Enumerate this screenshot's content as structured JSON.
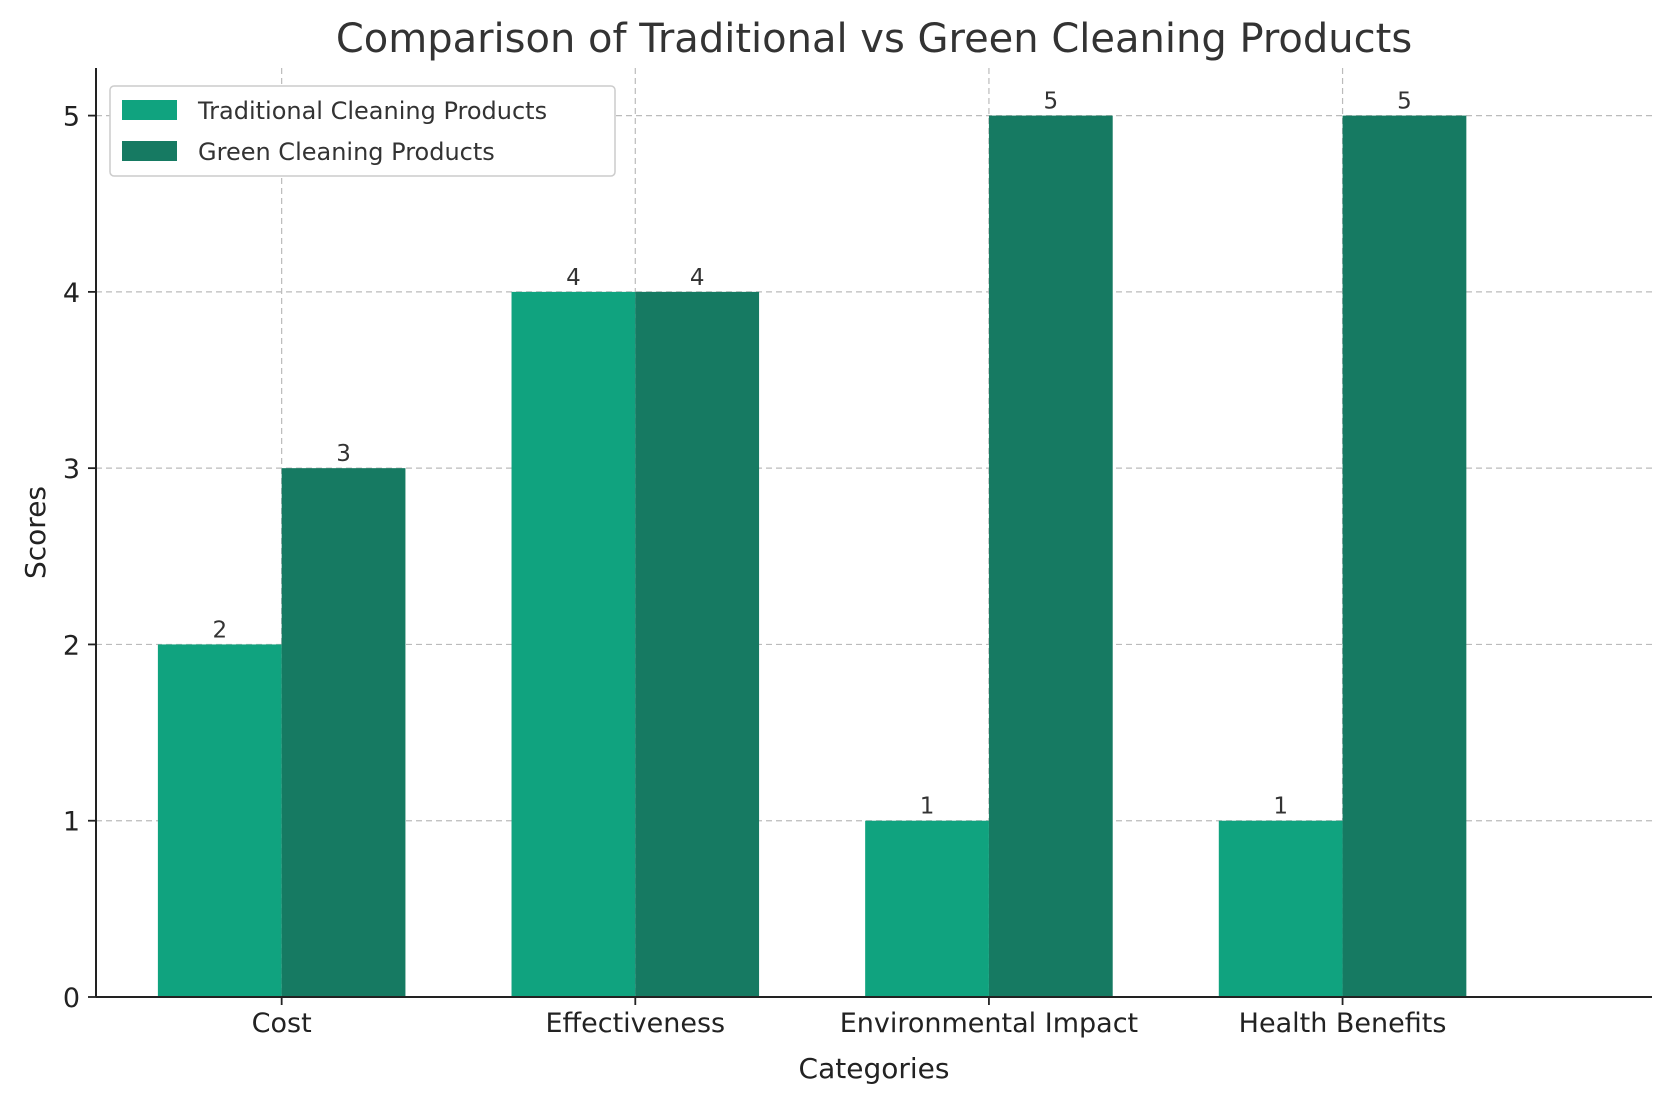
{
  "chart_data": {
    "type": "bar",
    "title": "Comparison of Traditional vs Green Cleaning Products",
    "xlabel": "Categories",
    "ylabel": "Scores",
    "categories": [
      "Cost",
      "Effectiveness",
      "Environmental Impact",
      "Health Benefits"
    ],
    "series": [
      {
        "name": "Traditional Cleaning Products",
        "color": "#10a37f",
        "values": [
          2,
          4,
          1,
          1
        ]
      },
      {
        "name": "Green Cleaning Products",
        "color": "#167a62",
        "values": [
          3,
          4,
          5,
          5
        ]
      }
    ],
    "ylim": [
      0,
      5.27
    ],
    "yticks": [
      0,
      1,
      2,
      3,
      4,
      5
    ],
    "grid": true,
    "legend_position": "top-left"
  }
}
